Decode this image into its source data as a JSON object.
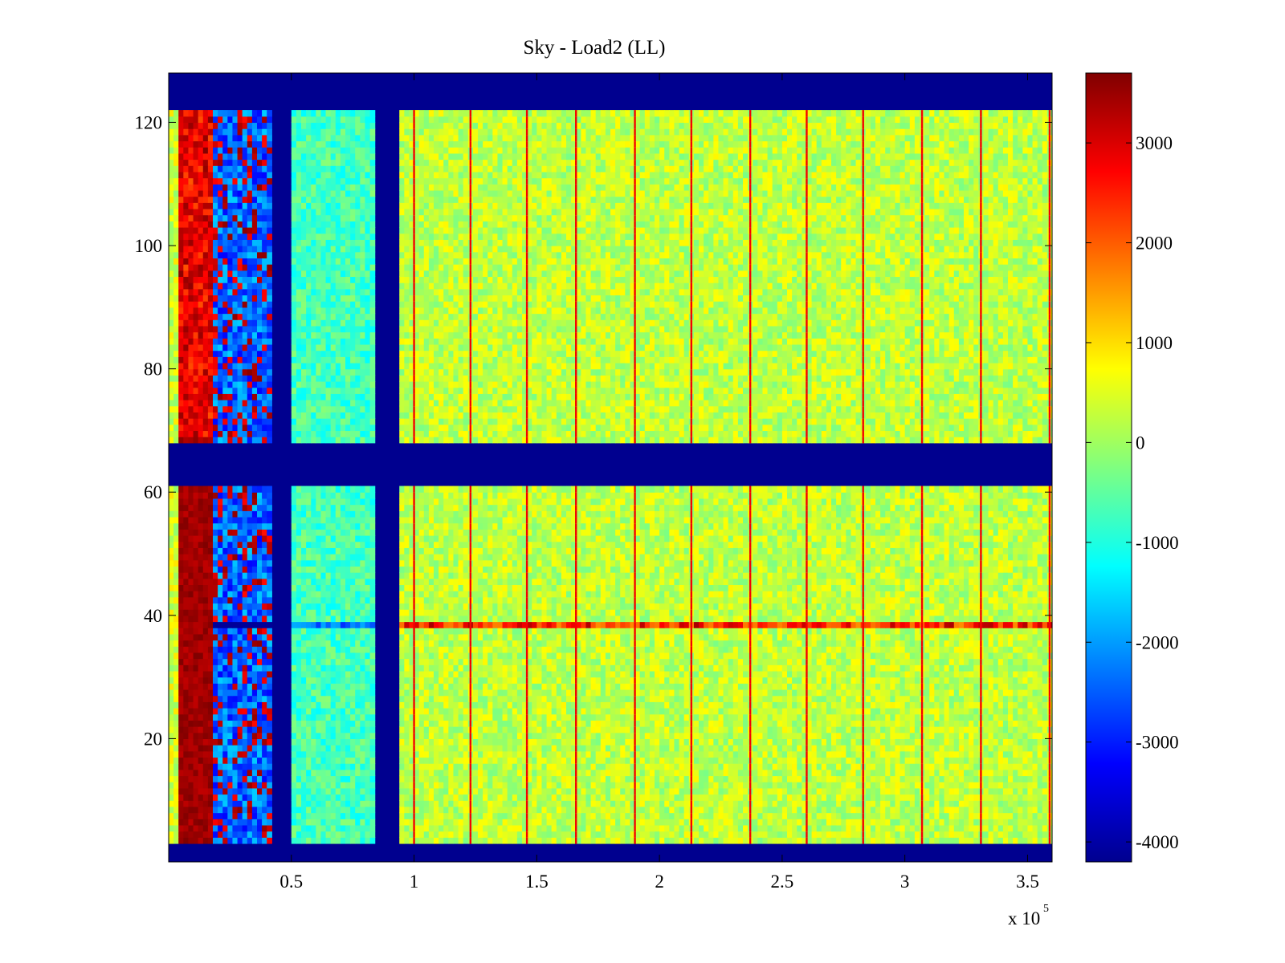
{
  "chart_data": {
    "type": "heatmap",
    "title": "Sky - Load2 (LL)",
    "xlabel": "",
    "ylabel": "",
    "x_multiplier": {
      "base": "x 10",
      "exponent": "5"
    },
    "xlim": [
      0,
      3.6
    ],
    "ylim": [
      0,
      128
    ],
    "x_ticks": [
      0.5,
      1,
      1.5,
      2,
      2.5,
      3,
      3.5
    ],
    "x_tick_labels": [
      "0.5",
      "1",
      "1.5",
      "2",
      "2.5",
      "3",
      "3.5"
    ],
    "y_ticks": [
      20,
      40,
      60,
      80,
      100,
      120
    ],
    "y_tick_labels": [
      "20",
      "40",
      "60",
      "80",
      "100",
      "120"
    ],
    "colorbar": {
      "colormap": "jet",
      "clim": [
        -4200,
        3700
      ],
      "ticks": [
        3000,
        2000,
        1000,
        0,
        -1000,
        -2000,
        -3000,
        -4000
      ],
      "tick_labels": [
        "3000",
        "2000",
        "1000",
        "0",
        "-1000",
        "-2000",
        "-3000",
        "-4000"
      ]
    },
    "grid": false,
    "masked_rows_ranges": [
      [
        0,
        3
      ],
      [
        61,
        68
      ],
      [
        122,
        128
      ]
    ],
    "masked_x_ranges": [
      [
        0.42,
        0.5
      ],
      [
        0.84,
        0.95
      ]
    ],
    "column_profile": [
      {
        "x": [
          0.0,
          0.05
        ],
        "value": 400
      },
      {
        "x": [
          0.05,
          0.18
        ],
        "value": 3600
      },
      {
        "x": [
          0.18,
          0.42
        ],
        "value": -3000
      },
      {
        "x": [
          0.5,
          0.84
        ],
        "value": -700
      },
      {
        "x": [
          0.95,
          3.6
        ],
        "value": 0
      }
    ],
    "stripe_x_positions": [
      1.0,
      1.23,
      1.46,
      1.66,
      1.9,
      2.13,
      2.37,
      2.6,
      2.83,
      3.07,
      3.31,
      3.59
    ],
    "highlighted_row": 38
  }
}
